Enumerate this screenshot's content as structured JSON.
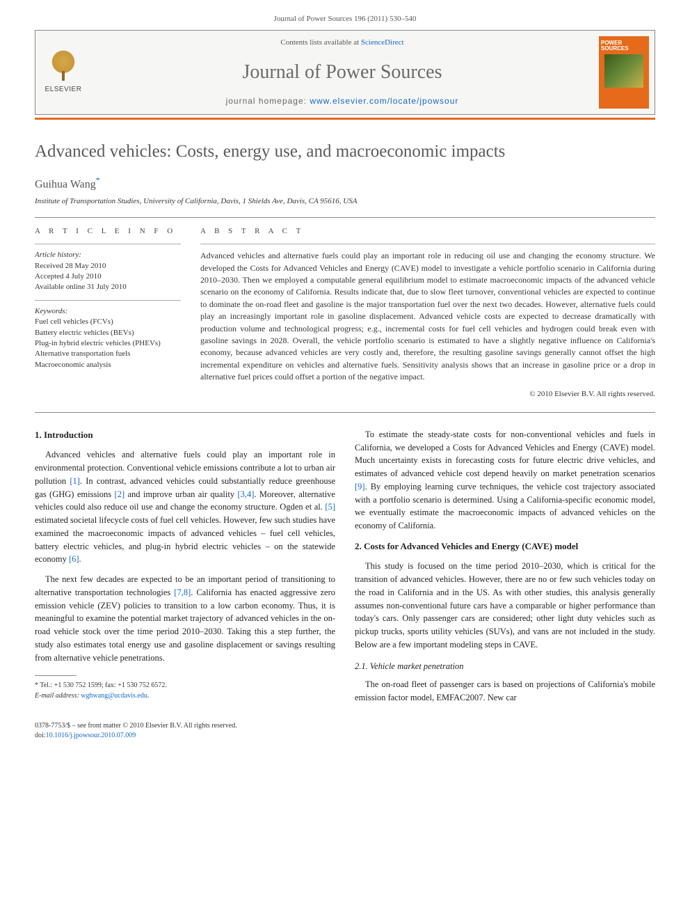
{
  "citation": "Journal of Power Sources 196 (2011) 530–540",
  "header": {
    "contents_prefix": "Contents lists available at ",
    "contents_link": "ScienceDirect",
    "journal_name": "Journal of Power Sources",
    "homepage_prefix": "journal homepage: ",
    "homepage_url": "www.elsevier.com/locate/jpowsour",
    "elsevier": "ELSEVIER",
    "cover_title": "POWER SOURCES"
  },
  "article": {
    "title": "Advanced vehicles: Costs, energy use, and macroeconomic impacts",
    "author": "Guihua Wang",
    "author_mark": "*",
    "affiliation": "Institute of Transportation Studies, University of California, Davis, 1 Shields Ave, Davis, CA 95616, USA"
  },
  "info": {
    "label": "A R T I C L E   I N F O",
    "history_label": "Article history:",
    "history": [
      "Received 28 May 2010",
      "Accepted 4 July 2010",
      "Available online 31 July 2010"
    ],
    "keywords_label": "Keywords:",
    "keywords": [
      "Fuel cell vehicles (FCVs)",
      "Battery electric vehicles (BEVs)",
      "Plug-in hybrid electric vehicles (PHEVs)",
      "Alternative transportation fuels",
      "Macroeconomic analysis"
    ]
  },
  "abstract": {
    "label": "A B S T R A C T",
    "text": "Advanced vehicles and alternative fuels could play an important role in reducing oil use and changing the economy structure. We developed the Costs for Advanced Vehicles and Energy (CAVE) model to investigate a vehicle portfolio scenario in California during 2010–2030. Then we employed a computable general equilibrium model to estimate macroeconomic impacts of the advanced vehicle scenario on the economy of California. Results indicate that, due to slow fleet turnover, conventional vehicles are expected to continue to dominate the on-road fleet and gasoline is the major transportation fuel over the next two decades. However, alternative fuels could play an increasingly important role in gasoline displacement. Advanced vehicle costs are expected to decrease dramatically with production volume and technological progress; e.g., incremental costs for fuel cell vehicles and hydrogen could break even with gasoline savings in 2028. Overall, the vehicle portfolio scenario is estimated to have a slightly negative influence on California's economy, because advanced vehicles are very costly and, therefore, the resulting gasoline savings generally cannot offset the high incremental expenditure on vehicles and alternative fuels. Sensitivity analysis shows that an increase in gasoline price or a drop in alternative fuel prices could offset a portion of the negative impact.",
    "copyright": "© 2010 Elsevier B.V. All rights reserved."
  },
  "body": {
    "sec1_heading": "1.  Introduction",
    "sec1_p1": "Advanced vehicles and alternative fuels could play an important role in environmental protection. Conventional vehicle emissions contribute a lot to urban air pollution [1]. In contrast, advanced vehicles could substantially reduce greenhouse gas (GHG) emissions [2] and improve urban air quality [3,4]. Moreover, alternative vehicles could also reduce oil use and change the economy structure. Ogden et al. [5] estimated societal lifecycle costs of fuel cell vehicles. However, few such studies have examined the macroeconomic impacts of advanced vehicles – fuel cell vehicles, battery electric vehicles, and plug-in hybrid electric vehicles – on the statewide economy [6].",
    "sec1_p2": "The next few decades are expected to be an important period of transitioning to alternative transportation technologies [7,8]. California has enacted aggressive zero emission vehicle (ZEV) policies to transition to a low carbon economy. Thus, it is meaningful to examine the potential market trajectory of advanced vehicles in the on-road vehicle stock over the time period 2010–2030. Taking this a step further, the study also estimates total energy use and gasoline displacement or savings resulting from alternative vehicle penetrations.",
    "sec1_p3": "To estimate the steady-state costs for non-conventional vehicles and fuels in California, we developed a Costs for Advanced Vehicles and Energy (CAVE) model. Much uncertainty exists in forecasting costs for future electric drive vehicles, and estimates of advanced vehicle cost depend heavily on market penetration scenarios [9]. By employing learning curve techniques, the vehicle cost trajectory associated with a portfolio scenario is determined. Using a California-specific economic model, we eventually estimate the macroeconomic impacts of advanced vehicles on the economy of California.",
    "sec2_heading": "2.  Costs for Advanced Vehicles and Energy (CAVE) model",
    "sec2_p1": "This study is focused on the time period 2010–2030, which is critical for the transition of advanced vehicles. However, there are no or few such vehicles today on the road in California and in the US. As with other studies, this analysis generally assumes non-conventional future cars have a comparable or higher performance than today's cars. Only passenger cars are considered; other light duty vehicles such as pickup trucks, sports utility vehicles (SUVs), and vans are not included in the study. Below are a few important modeling steps in CAVE.",
    "sec21_heading": "2.1.  Vehicle market penetration",
    "sec21_p1": "The on-road fleet of passenger cars is based on projections of California's mobile emission factor model, EMFAC2007. New car"
  },
  "footnote": {
    "tel": "* Tel.: +1 530 752 1599; fax: +1 530 752 6572.",
    "email_label": "E-mail address: ",
    "email": "wghwang@ucdavis.edu"
  },
  "bottom": {
    "issn": "0378-7753/$ – see front matter © 2010 Elsevier B.V. All rights reserved.",
    "doi_label": "doi:",
    "doi": "10.1016/j.jpowsour.2010.07.009"
  },
  "refs": {
    "r1": "[1]",
    "r2": "[2]",
    "r34": "[3,4]",
    "r5": "[5]",
    "r6": "[6]",
    "r78": "[7,8]",
    "r9": "[9]"
  },
  "colors": {
    "link": "#1468c7",
    "accent": "#e56a1a",
    "title_gray": "#5a5a5a"
  }
}
